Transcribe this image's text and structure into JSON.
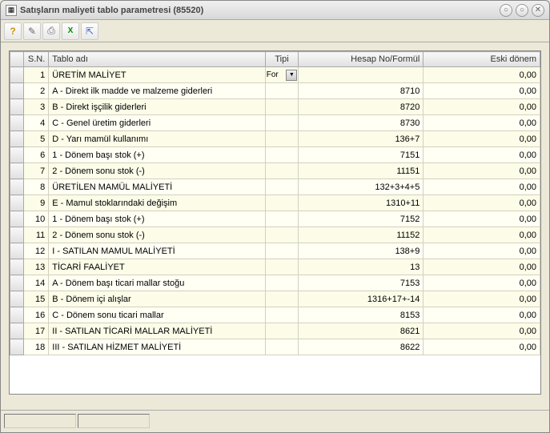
{
  "window": {
    "title": "Satışların maliyeti tablo parametresi (85520)"
  },
  "table": {
    "type": "table",
    "background_color_odd": "#fcfce8",
    "background_color_even": "#fffff4",
    "border_color": "#d4d0c0",
    "header_bg": "#e8e8e8",
    "columns": {
      "sn": "S.N.",
      "name": "Tablo adı",
      "tipi": "Tipi",
      "formul": "Hesap No/Formül",
      "eski": "Eski dönem"
    },
    "column_alignment": {
      "sn": "right",
      "name": "left",
      "tipi": "center",
      "formul": "right",
      "eski": "right"
    },
    "dropdown_value": "For",
    "rows": [
      {
        "sn": "1",
        "name": "ÜRETİM MALİYET",
        "tipi": "For",
        "formul": "",
        "eski": "0,00"
      },
      {
        "sn": "2",
        "name": "A - Direkt ilk madde ve malzeme giderleri",
        "tipi": "",
        "formul": "8710",
        "eski": "0,00"
      },
      {
        "sn": "3",
        "name": "B - Direkt işçilik giderleri",
        "tipi": "",
        "formul": "8720",
        "eski": "0,00"
      },
      {
        "sn": "4",
        "name": "C - Genel üretim giderleri",
        "tipi": "",
        "formul": "8730",
        "eski": "0,00"
      },
      {
        "sn": "5",
        "name": "D - Yarı mamül kullanımı",
        "tipi": "",
        "formul": "136+7",
        "eski": "0,00"
      },
      {
        "sn": "6",
        "name": "1 - Dönem başı stok (+)",
        "tipi": "",
        "formul": "7151",
        "eski": "0,00"
      },
      {
        "sn": "7",
        "name": "2 - Dönem sonu stok (-)",
        "tipi": "",
        "formul": "11151",
        "eski": "0,00"
      },
      {
        "sn": "8",
        "name": "ÜRETİLEN MAMÜL MALİYETİ",
        "tipi": "",
        "formul": "132+3+4+5",
        "eski": "0,00"
      },
      {
        "sn": "9",
        "name": "E - Mamul stoklarındaki değişim",
        "tipi": "",
        "formul": "1310+11",
        "eski": "0,00"
      },
      {
        "sn": "10",
        "name": "1 - Dönem başı stok (+)",
        "tipi": "",
        "formul": "7152",
        "eski": "0,00"
      },
      {
        "sn": "11",
        "name": "2 - Dönem sonu stok (-)",
        "tipi": "",
        "formul": "11152",
        "eski": "0,00"
      },
      {
        "sn": "12",
        "name": "I - SATILAN MAMUL MALİYETİ",
        "tipi": "",
        "formul": "138+9",
        "eski": "0,00"
      },
      {
        "sn": "13",
        "name": "TİCARİ FAALİYET",
        "tipi": "",
        "formul": "13",
        "eski": "0,00"
      },
      {
        "sn": "14",
        "name": "A - Dönem başı ticari mallar stoğu",
        "tipi": "",
        "formul": "7153",
        "eski": "0,00"
      },
      {
        "sn": "15",
        "name": "B - Dönem içi alışlar",
        "tipi": "",
        "formul": "1316+17+-14",
        "eski": "0,00"
      },
      {
        "sn": "16",
        "name": "C - Dönem sonu ticari mallar",
        "tipi": "",
        "formul": "8153",
        "eski": "0,00"
      },
      {
        "sn": "17",
        "name": "II - SATILAN TİCARİ MALLAR MALİYETİ",
        "tipi": "",
        "formul": "8621",
        "eski": "0,00"
      },
      {
        "sn": "18",
        "name": "III - SATILAN HİZMET MALİYETİ",
        "tipi": "",
        "formul": "8622",
        "eski": "0,00"
      }
    ]
  }
}
